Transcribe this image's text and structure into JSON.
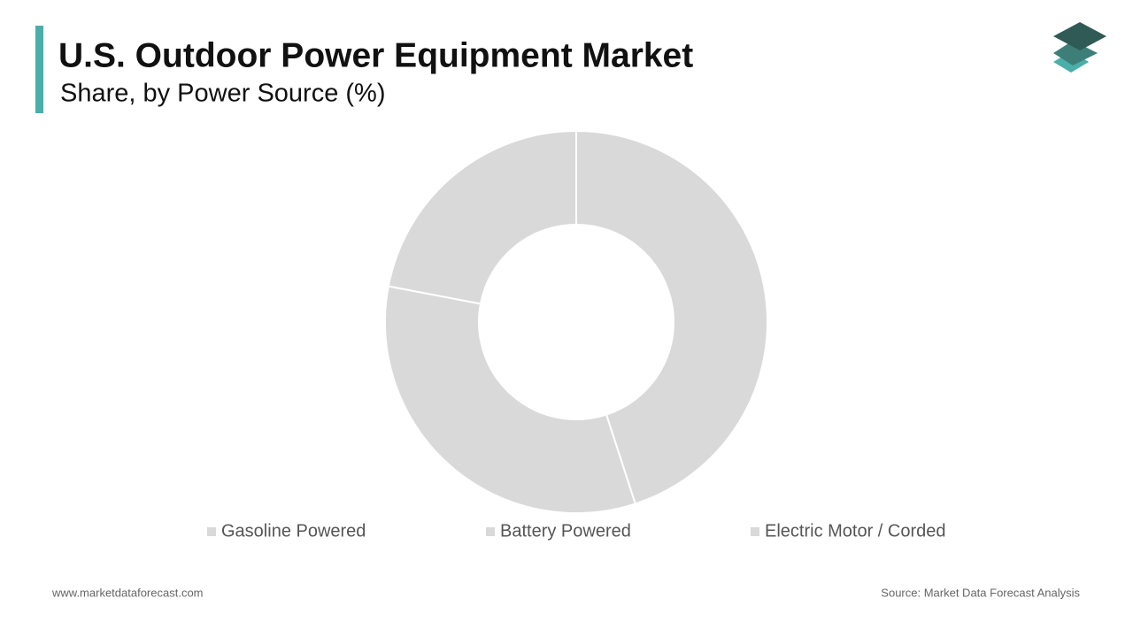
{
  "chart_data": {
    "type": "donut",
    "title": "U.S. Outdoor Power Equipment Market",
    "subtitle": "Share, by Power Source (%)",
    "categories": [
      "Gasoline Powered",
      "Battery Powered",
      "Electric Motor / Corded"
    ],
    "values": [
      45,
      33,
      22
    ],
    "color": "#d9d9d9",
    "website": "www.marketdataforecast.com",
    "source": "Source: Market Data Forecast Analysis"
  }
}
